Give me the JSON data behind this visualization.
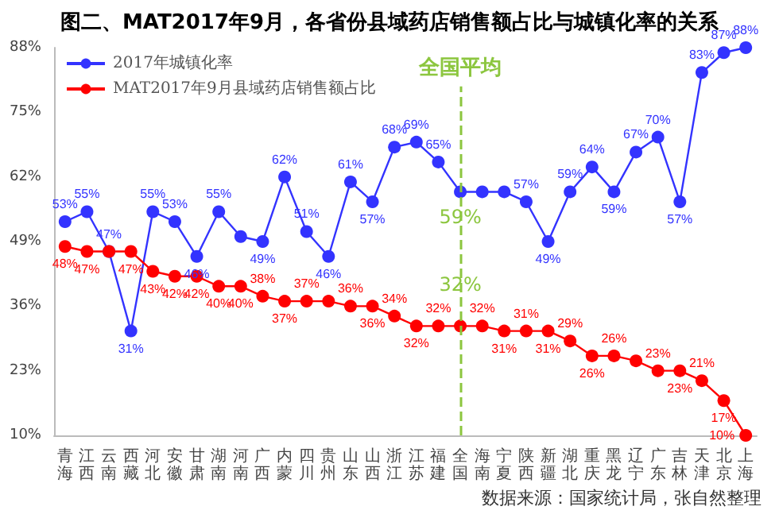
{
  "chart_data": {
    "type": "line",
    "title": "图二、MAT2017年9月，各省份县域药店销售额占比与城镇化率的关系",
    "categories": [
      "青海",
      "江西",
      "云南",
      "西藏",
      "河北",
      "安徽",
      "甘肃",
      "湖南",
      "河南",
      "广西",
      "内蒙",
      "四川",
      "贵州",
      "山东",
      "山西",
      "浙江",
      "江苏",
      "福建",
      "全国",
      "海南",
      "宁夏",
      "陕西",
      "新疆",
      "湖北",
      "重庆",
      "黑龙",
      "辽宁",
      "广东",
      "吉林",
      "天津",
      "北京",
      "上海"
    ],
    "series": [
      {
        "name": "2017年城镇化率",
        "color": "#3333ff",
        "values": [
          53,
          55,
          47,
          31,
          55,
          53,
          46,
          55,
          50,
          49,
          62,
          51,
          46,
          61,
          57,
          68,
          69,
          65,
          59,
          59,
          59,
          57,
          49,
          59,
          64,
          59,
          67,
          70,
          57,
          83,
          87,
          88
        ],
        "value_labels": [
          "53%",
          "55%",
          "47%",
          "31%",
          "55%",
          "53%",
          "46%",
          "55%",
          null,
          "49%",
          "62%",
          "51%",
          "46%",
          "61%",
          "57%",
          "68%",
          "69%",
          "65%",
          null,
          null,
          null,
          "57%",
          "49%",
          "59%",
          "64%",
          "59%",
          "67%",
          "70%",
          "57%",
          "83%",
          "87%",
          "88%"
        ]
      },
      {
        "name": "MAT2017年9月县域药店销售额占比",
        "color": "#ff0000",
        "values": [
          48,
          47,
          47,
          47,
          43,
          42,
          42,
          40,
          40,
          38,
          37,
          37,
          37,
          36,
          36,
          34,
          32,
          32,
          32,
          32,
          31,
          31,
          31,
          29,
          26,
          26,
          25,
          23,
          23,
          21,
          17,
          10
        ],
        "value_labels": [
          "48%",
          "47%",
          null,
          "47%",
          "43%",
          "42%",
          "42%",
          "40%",
          "40%",
          "38%",
          "37%",
          "37%",
          null,
          "36%",
          "36%",
          "34%",
          "32%",
          "32%",
          null,
          "32%",
          "31%",
          "31%",
          "31%",
          "29%",
          "26%",
          "26%",
          null,
          "23%",
          "23%",
          "21%",
          "17%",
          "10%"
        ]
      }
    ],
    "ylim": [
      10,
      88
    ],
    "yticks": [
      {
        "value": 10,
        "label": "10%"
      },
      {
        "value": 23,
        "label": "23%"
      },
      {
        "value": 36,
        "label": "36%"
      },
      {
        "value": 49,
        "label": "49%"
      },
      {
        "value": 62,
        "label": "62%"
      },
      {
        "value": 75,
        "label": "75%"
      },
      {
        "value": 88,
        "label": "88%"
      }
    ],
    "grid": false,
    "legend": "top left",
    "marker": "circle",
    "line_style": "solid",
    "ref_lines": [
      {
        "axis": "x",
        "value": "全国",
        "label": "全国平均",
        "color": "#8cc63f",
        "line_style": "dashed"
      }
    ],
    "annotations": [
      {
        "text": "59%",
        "x": "全国",
        "y": 59
      },
      {
        "text": "32%",
        "x": "全国",
        "y": 32
      },
      "数据来源：国家统计局，张自然整理"
    ]
  }
}
